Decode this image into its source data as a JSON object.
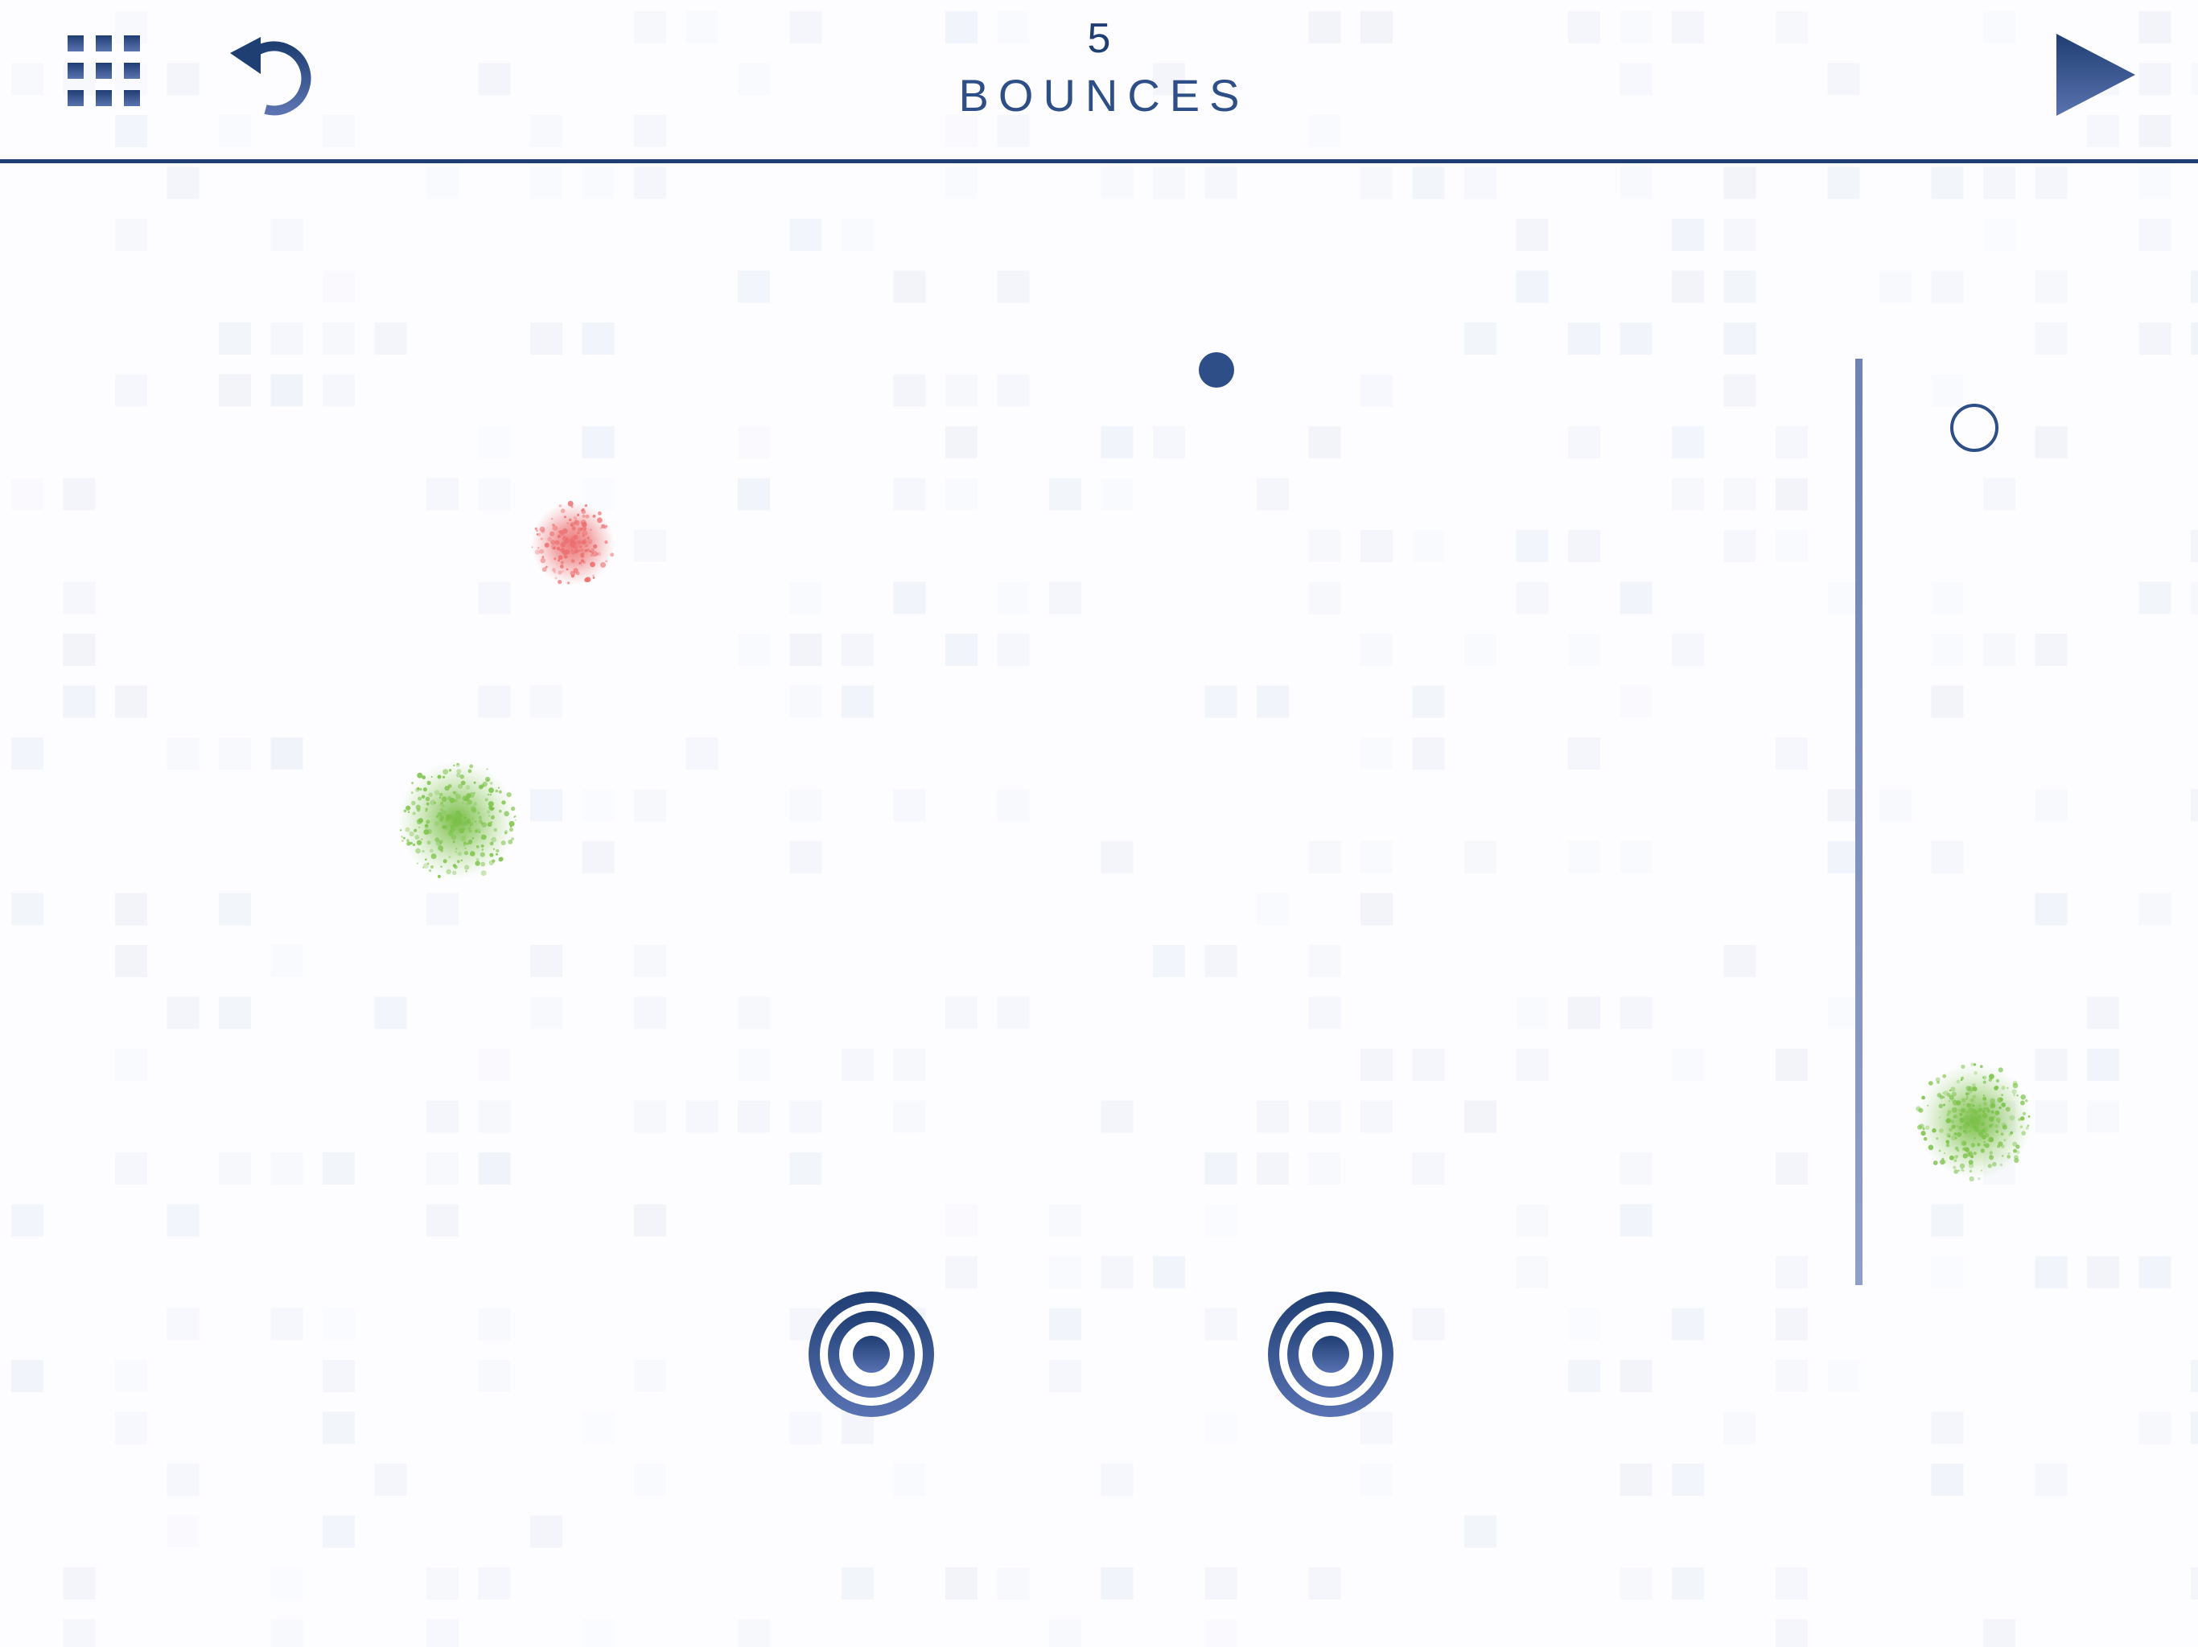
{
  "hud": {
    "bounces_count": "5",
    "bounces_label": "BOUNCES",
    "menu_icon": "grid-icon",
    "undo_icon": "undo-icon",
    "play_icon": "play-icon"
  },
  "colors": {
    "primary": "#1f3e72",
    "primary_light": "#6a82b5",
    "wall": "#8c9dc4",
    "hazard_red": "#ec6f6f",
    "goal_green": "#7cc24a",
    "tile": "#e7ecf6"
  },
  "level": {
    "ball": {
      "kind": "ball",
      "state": "active"
    },
    "ghost_ball": {
      "kind": "ball-outline"
    },
    "splats": [
      {
        "color": "red"
      },
      {
        "color": "green"
      },
      {
        "color": "green"
      }
    ],
    "targets": [
      {
        "kind": "target"
      },
      {
        "kind": "target"
      }
    ],
    "wall": {
      "orientation": "vertical"
    }
  }
}
